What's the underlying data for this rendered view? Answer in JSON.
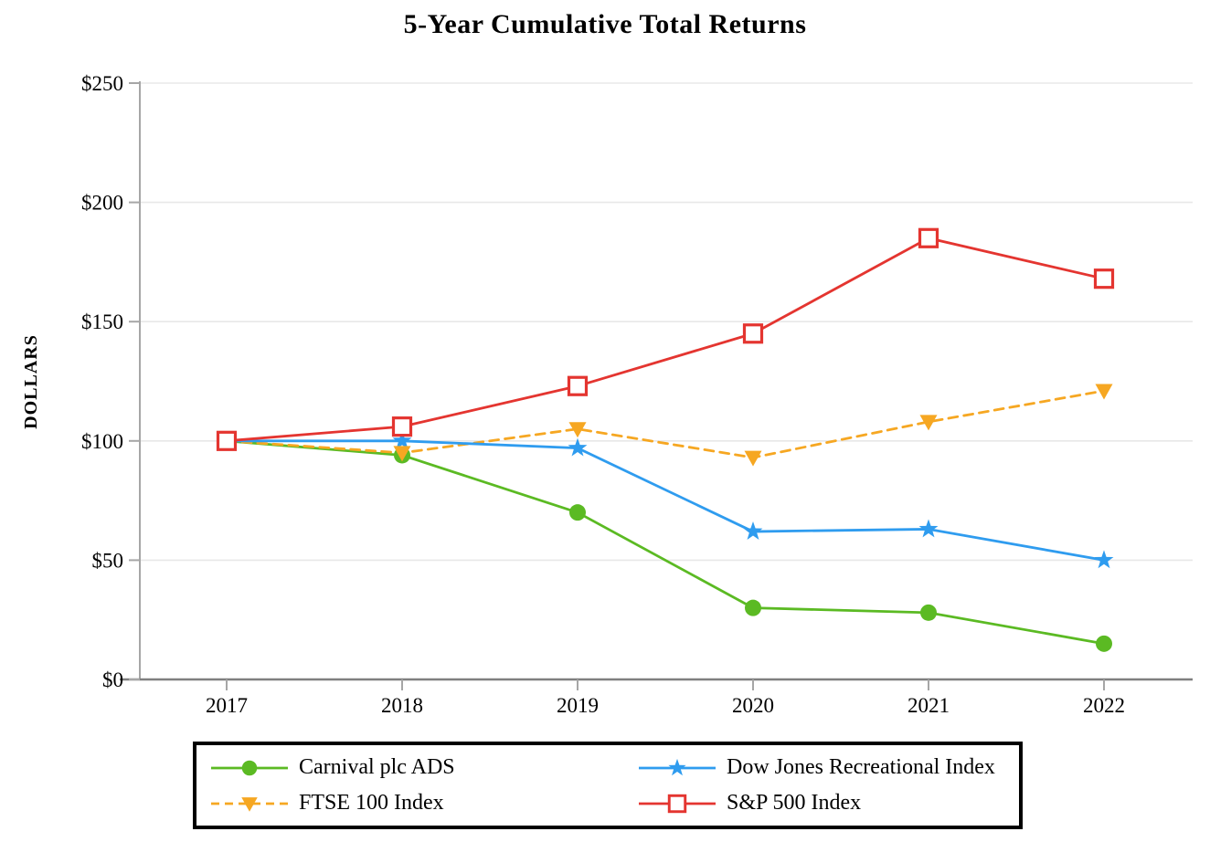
{
  "title": "5-Year Cumulative Total Returns",
  "chart_data": {
    "type": "line",
    "title": "5-Year Cumulative Total Returns",
    "x_categories": [
      "2017",
      "2018",
      "2019",
      "2020",
      "2021",
      "2022"
    ],
    "series": [
      {
        "name": "Carnival plc ADS",
        "color": "#5BBA23",
        "marker": "circle",
        "line": "solid",
        "values": [
          100,
          94,
          70,
          30,
          28,
          15
        ]
      },
      {
        "name": "FTSE 100 Index",
        "color": "#F6A722",
        "marker": "triangle-down",
        "line": "dashed",
        "values": [
          100,
          95,
          105,
          93,
          108,
          121
        ]
      },
      {
        "name": "Dow Jones Recreational Index",
        "color": "#2F9CEF",
        "marker": "star",
        "line": "solid",
        "values": [
          100,
          100,
          97,
          62,
          63,
          50
        ]
      },
      {
        "name": "S&P 500 Index",
        "color": "#E43530",
        "marker": "square-open",
        "line": "solid",
        "values": [
          100,
          106,
          123,
          145,
          185,
          168
        ]
      }
    ],
    "xlabel": "",
    "ylabel": "DOLLARS",
    "ylim": [
      0,
      250
    ],
    "ytick_values": [
      0,
      50,
      100,
      150,
      200,
      250
    ],
    "ytick_labels": [
      "$0",
      "$50",
      "$100",
      "$150",
      "$200",
      "$250"
    ],
    "grid": "horizontal-light",
    "legend_position": "bottom",
    "legend_order": [
      0,
      2,
      1,
      3
    ]
  }
}
